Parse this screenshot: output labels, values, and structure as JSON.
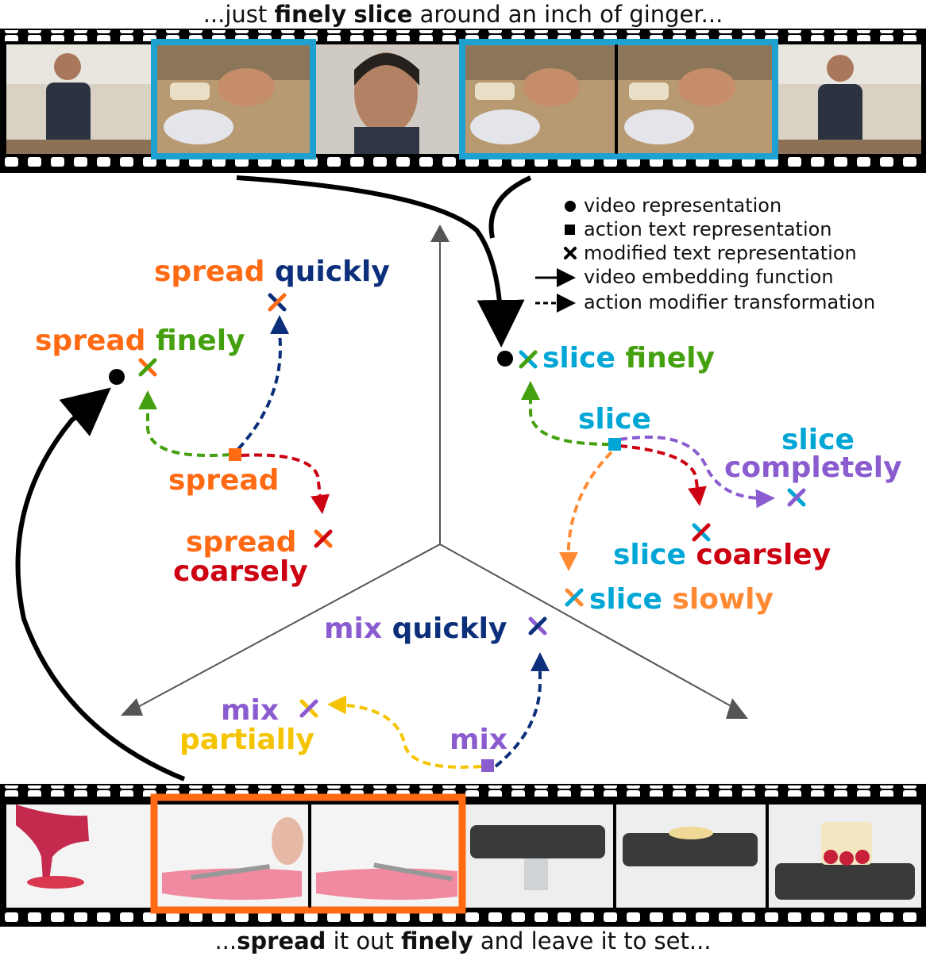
{
  "top_caption": {
    "before": "...just ",
    "bold1": "finely",
    "middle": " ",
    "bold2": "slice",
    "after": " around an inch of ginger..."
  },
  "bottom_caption": {
    "before": "...",
    "bold1": "spread",
    "middle": " it out ",
    "bold2": "finely",
    "after": " and leave it to set..."
  },
  "legend": [
    {
      "icon": "circle-marker-icon",
      "label": "video representation"
    },
    {
      "icon": "square-marker-icon",
      "label": "action text representation"
    },
    {
      "icon": "cross-marker-icon",
      "label": "modified text representation"
    },
    {
      "icon": "solid-arrow-icon",
      "label": "video embedding function"
    },
    {
      "icon": "dashed-arrow-icon",
      "label": "action modifier transformation"
    }
  ],
  "labels": {
    "spread_quickly": {
      "verb": "spread",
      "adverb": "quickly"
    },
    "spread_finely": {
      "verb": "spread",
      "adverb": "finely"
    },
    "spread": "spread",
    "spread_coarsely": {
      "verb": "spread",
      "adverb": "coarsely"
    },
    "slice_finely": {
      "verb": "slice",
      "adverb": "finely"
    },
    "slice": "slice",
    "slice_completely": {
      "verb": "slice",
      "adverb": "completely"
    },
    "slice_coarsley": {
      "verb": "slice",
      "adverb": "coarsley"
    },
    "slice_slowly": {
      "verb": "slice",
      "adverb": "slowly"
    },
    "mix_quickly": {
      "verb": "mix",
      "adverb": "quickly"
    },
    "mix_partially": {
      "verb": "mix",
      "adverb": "partially"
    },
    "mix": "mix"
  },
  "colors": {
    "spread": "#ff6a13",
    "slice": "#00a6d6",
    "mix": "#8a5cd0",
    "quickly": "#0b2f7a",
    "finely": "#45a00f",
    "coarsely": "#cc0011",
    "completely": "#8a5cd0",
    "slowly": "#ff8a33",
    "partially": "#f5c400",
    "highlight_top": "#1ea0d0",
    "highlight_bottom": "#ff6a13",
    "axis": "#555555"
  }
}
